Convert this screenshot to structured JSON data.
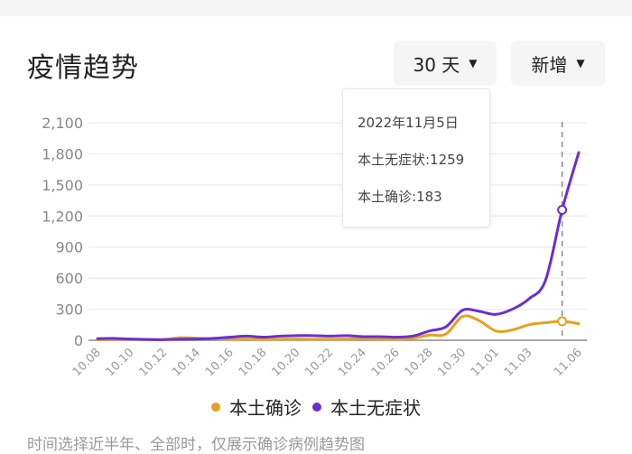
{
  "header": {
    "title": "疫情趋势",
    "range_dropdown": "30 天",
    "type_dropdown": "新增",
    "caret": "▼"
  },
  "tooltip": {
    "date": "2022年11月5日",
    "line1": "本土无症状:1259",
    "line2": "本土确诊:183"
  },
  "legend": {
    "items": [
      {
        "label": "本土确诊",
        "color": "#e6a020"
      },
      {
        "label": "本土无症状",
        "color": "#6a2fd0"
      }
    ]
  },
  "footer_note": "时间选择近半年、全部时，仅展示确诊病例趋势图",
  "chart_data": {
    "type": "line",
    "title": "疫情趋势",
    "xlabel": "",
    "ylabel": "",
    "ylim": [
      0,
      2100
    ],
    "yticks": [
      0,
      300,
      600,
      900,
      1200,
      1500,
      1800,
      2100
    ],
    "ytick_labels": [
      "0",
      "300",
      "600",
      "900",
      "1,200",
      "1,500",
      "1,800",
      "2,100"
    ],
    "x": [
      "10.08",
      "10.09",
      "10.10",
      "10.11",
      "10.12",
      "10.13",
      "10.14",
      "10.15",
      "10.16",
      "10.17",
      "10.18",
      "10.19",
      "10.20",
      "10.21",
      "10.22",
      "10.23",
      "10.24",
      "10.25",
      "10.26",
      "10.27",
      "10.28",
      "10.29",
      "10.30",
      "10.31",
      "11.01",
      "11.02",
      "11.03",
      "11.04",
      "11.05",
      "11.06"
    ],
    "xtick_labels": [
      "10.08",
      "10.10",
      "10.12",
      "10.14",
      "10.16",
      "10.18",
      "10.20",
      "10.22",
      "10.24",
      "10.26",
      "10.28",
      "10.30",
      "11.01",
      "11.03",
      "11.06"
    ],
    "grid": true,
    "legend_position": "bottom",
    "highlight": {
      "x": "11.05",
      "values": {
        "本土无症状": 1259,
        "本土确诊": 183
      }
    },
    "series": [
      {
        "name": "本土确诊",
        "color": "#e6a020",
        "values": [
          5,
          8,
          10,
          6,
          8,
          25,
          20,
          15,
          10,
          12,
          8,
          10,
          12,
          10,
          10,
          12,
          15,
          12,
          10,
          20,
          50,
          60,
          230,
          190,
          90,
          100,
          150,
          170,
          183,
          160
        ]
      },
      {
        "name": "本土无症状",
        "color": "#6a2fd0",
        "values": [
          15,
          18,
          12,
          8,
          6,
          10,
          12,
          18,
          30,
          40,
          30,
          40,
          45,
          45,
          40,
          45,
          35,
          35,
          30,
          40,
          90,
          130,
          290,
          280,
          250,
          300,
          400,
          580,
          1259,
          1812
        ]
      }
    ]
  }
}
